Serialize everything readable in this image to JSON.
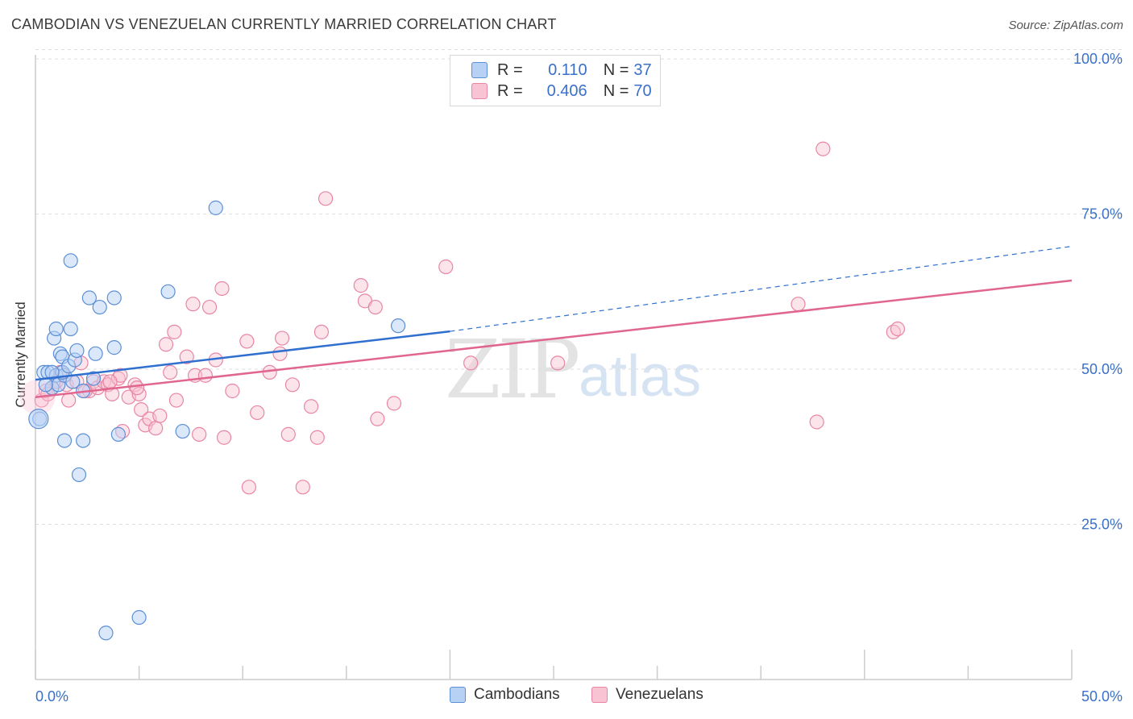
{
  "header": {
    "title": "CAMBODIAN VS VENEZUELAN CURRENTLY MARRIED CORRELATION CHART",
    "source": "Source: ZipAtlas.com"
  },
  "legend": {
    "rows": [
      {
        "r_label": "R =",
        "r_value": "0.110",
        "n_label": "N =",
        "n_value": "37"
      },
      {
        "r_label": "R =",
        "r_value": "0.406",
        "n_label": "N =",
        "n_value": "70"
      }
    ]
  },
  "watermark": {
    "zip": "ZIP",
    "atlas": "atlas"
  },
  "colors": {
    "cambodians_fill": "#b7d1f5",
    "cambodians_stroke": "#5b8fd6",
    "cambodians_line": "#2f6fcf",
    "venezuelans_fill": "#f8c4d3",
    "venezuelans_stroke": "#e886a4",
    "venezuelans_line": "#e0668f",
    "tick_text": "#3a70c8",
    "grid": "#dddddd"
  },
  "chart_data": {
    "type": "scatter",
    "title": "CAMBODIAN VS VENEZUELAN CURRENTLY MARRIED CORRELATION CHART",
    "xlabel": "",
    "ylabel": "Currently Married",
    "xlim": [
      0,
      50
    ],
    "ylim": [
      0,
      105
    ],
    "x_tick_labels": [
      "0.0%",
      "50.0%"
    ],
    "y_ticks": [
      25,
      50,
      75,
      100
    ],
    "y_tick_labels": [
      "25.0%",
      "50.0%",
      "75.0%",
      "100.0%"
    ],
    "grid": true,
    "series": [
      {
        "name": "Cambodians",
        "R": 0.11,
        "N": 37,
        "trend": {
          "x0": 0,
          "y0": 48.3,
          "x1": 20,
          "y1": 56.1,
          "dashed_to_x": 50,
          "dashed_to_y": 69.8
        },
        "points": [
          [
            0.2,
            42.0
          ],
          [
            0.4,
            49.5
          ],
          [
            0.6,
            49.5
          ],
          [
            0.8,
            47.0
          ],
          [
            0.9,
            55.0
          ],
          [
            1.0,
            56.5
          ],
          [
            1.0,
            49.0
          ],
          [
            1.1,
            47.5
          ],
          [
            1.2,
            52.5
          ],
          [
            1.3,
            52.0
          ],
          [
            1.4,
            49.0
          ],
          [
            1.3,
            49.5
          ],
          [
            1.4,
            38.5
          ],
          [
            1.6,
            50.5
          ],
          [
            1.7,
            67.5
          ],
          [
            1.7,
            56.5
          ],
          [
            1.8,
            48.0
          ],
          [
            1.9,
            51.5
          ],
          [
            2.0,
            53.0
          ],
          [
            2.1,
            33.0
          ],
          [
            2.3,
            38.5
          ],
          [
            2.3,
            46.5
          ],
          [
            2.6,
            61.5
          ],
          [
            2.8,
            48.5
          ],
          [
            2.9,
            52.5
          ],
          [
            3.1,
            60.0
          ],
          [
            3.4,
            7.5
          ],
          [
            3.8,
            61.5
          ],
          [
            3.8,
            53.5
          ],
          [
            4.0,
            39.5
          ],
          [
            5.0,
            10.0
          ],
          [
            6.4,
            62.5
          ],
          [
            7.1,
            40.0
          ],
          [
            8.7,
            76.0
          ],
          [
            0.5,
            47.5
          ],
          [
            0.8,
            49.5
          ],
          [
            17.5,
            57.0
          ]
        ]
      },
      {
        "name": "Venezuelans",
        "R": 0.406,
        "N": 70,
        "trend": {
          "x0": 0,
          "y0": 45.5,
          "x1": 50,
          "y1": 64.3
        },
        "points": [
          [
            0.3,
            45.0
          ],
          [
            0.5,
            46.5
          ],
          [
            0.8,
            47.0
          ],
          [
            1.0,
            48.0
          ],
          [
            1.2,
            49.5
          ],
          [
            1.5,
            47.5
          ],
          [
            1.6,
            45.0
          ],
          [
            2.0,
            48.0
          ],
          [
            2.2,
            51.0
          ],
          [
            2.6,
            46.5
          ],
          [
            2.8,
            48.0
          ],
          [
            3.0,
            47.0
          ],
          [
            3.3,
            48.0
          ],
          [
            3.5,
            47.5
          ],
          [
            3.7,
            46.0
          ],
          [
            4.0,
            48.5
          ],
          [
            4.1,
            49.0
          ],
          [
            4.2,
            40.0
          ],
          [
            4.5,
            45.5
          ],
          [
            4.8,
            47.5
          ],
          [
            5.0,
            46.0
          ],
          [
            5.1,
            43.5
          ],
          [
            5.3,
            41.0
          ],
          [
            5.5,
            42.0
          ],
          [
            5.8,
            40.5
          ],
          [
            6.0,
            42.5
          ],
          [
            6.3,
            54.0
          ],
          [
            6.5,
            49.5
          ],
          [
            6.7,
            56.0
          ],
          [
            6.8,
            45.0
          ],
          [
            7.3,
            52.0
          ],
          [
            7.6,
            60.5
          ],
          [
            7.7,
            49.0
          ],
          [
            7.9,
            39.5
          ],
          [
            8.2,
            49.0
          ],
          [
            8.4,
            60.0
          ],
          [
            8.7,
            51.5
          ],
          [
            9.0,
            63.0
          ],
          [
            9.1,
            39.0
          ],
          [
            9.5,
            46.5
          ],
          [
            10.2,
            54.5
          ],
          [
            10.3,
            31.0
          ],
          [
            10.7,
            43.0
          ],
          [
            11.3,
            49.5
          ],
          [
            11.8,
            52.5
          ],
          [
            11.9,
            55.0
          ],
          [
            12.2,
            39.5
          ],
          [
            12.4,
            47.5
          ],
          [
            12.9,
            31.0
          ],
          [
            13.3,
            44.0
          ],
          [
            13.6,
            39.0
          ],
          [
            13.8,
            56.0
          ],
          [
            14.0,
            77.5
          ],
          [
            15.7,
            63.5
          ],
          [
            15.9,
            61.0
          ],
          [
            16.4,
            60.0
          ],
          [
            16.5,
            42.0
          ],
          [
            17.3,
            44.5
          ],
          [
            19.8,
            66.5
          ],
          [
            21.0,
            51.0
          ],
          [
            25.2,
            51.0
          ],
          [
            36.8,
            60.5
          ],
          [
            37.7,
            41.5
          ],
          [
            38.0,
            85.5
          ],
          [
            41.4,
            56.0
          ],
          [
            41.6,
            56.5
          ],
          [
            0.6,
            46.0
          ],
          [
            2.4,
            46.5
          ],
          [
            3.6,
            48.0
          ],
          [
            4.9,
            47.0
          ]
        ]
      }
    ]
  },
  "bottom_legend": {
    "items": [
      "Cambodians",
      "Venezuelans"
    ]
  }
}
